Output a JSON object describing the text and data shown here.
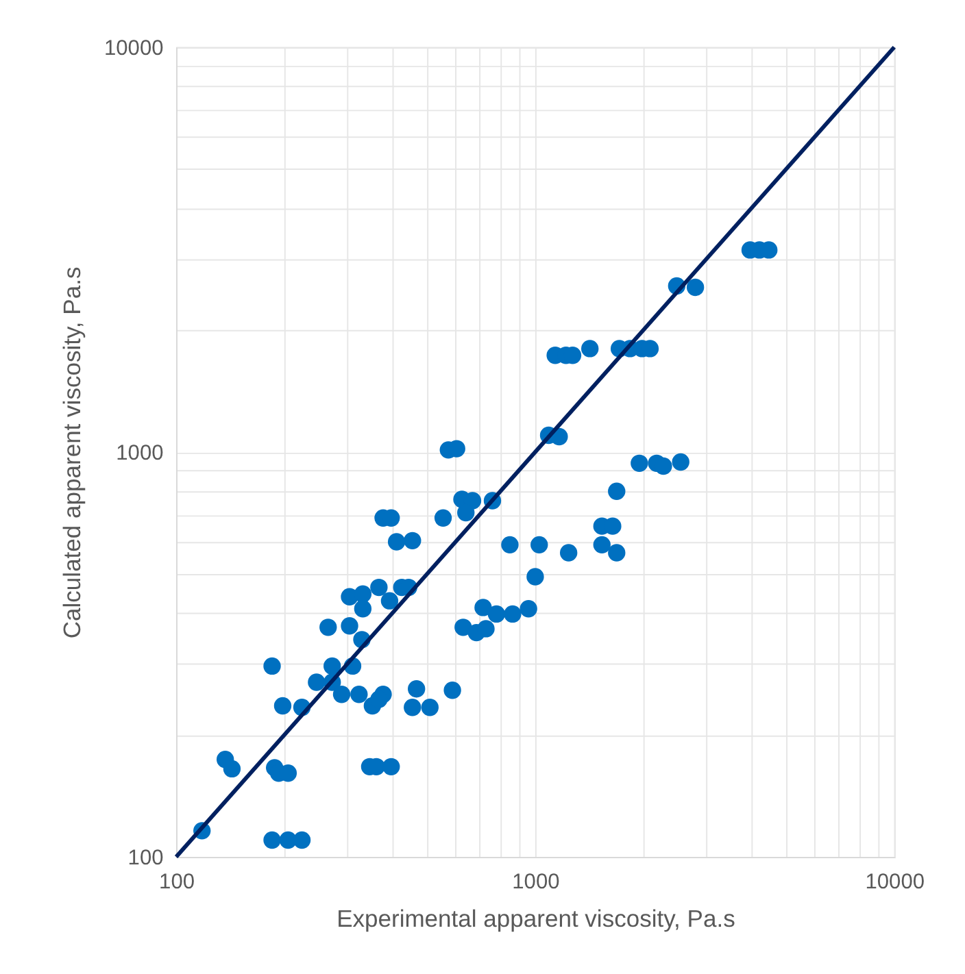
{
  "chart_data": {
    "type": "scatter",
    "xlabel": "Experimental apparent viscosity, Pa.s",
    "ylabel": "Calculated apparent viscosity, Pa.s",
    "log": "xy",
    "grid": true,
    "marker": "circle",
    "xlim": [
      100,
      10000
    ],
    "ylim": [
      100,
      10000
    ],
    "xticks": [
      100,
      {
        "value": 200,
        "label": null
      },
      {
        "value": 300,
        "label": null
      },
      {
        "value": 400,
        "label": null
      },
      {
        "value": 500,
        "label": null
      },
      {
        "value": 600,
        "label": null
      },
      {
        "value": 700,
        "label": null
      },
      {
        "value": 800,
        "label": null
      },
      {
        "value": 900,
        "label": null
      },
      1000,
      {
        "value": 2000,
        "label": null
      },
      {
        "value": 3000,
        "label": null
      },
      {
        "value": 4000,
        "label": null
      },
      {
        "value": 5000,
        "label": null
      },
      {
        "value": 6000,
        "label": null
      },
      {
        "value": 7000,
        "label": null
      },
      {
        "value": 8000,
        "label": null
      },
      {
        "value": 9000,
        "label": null
      },
      10000
    ],
    "yticks": [
      100,
      {
        "value": 200,
        "label": null
      },
      {
        "value": 300,
        "label": null
      },
      {
        "value": 400,
        "label": null
      },
      {
        "value": 500,
        "label": null
      },
      {
        "value": 600,
        "label": null
      },
      {
        "value": 700,
        "label": null
      },
      {
        "value": 800,
        "label": null
      },
      {
        "value": 900,
        "label": null
      },
      1000,
      {
        "value": 2000,
        "label": null
      },
      {
        "value": 3000,
        "label": null
      },
      {
        "value": 4000,
        "label": null
      },
      {
        "value": 5000,
        "label": null
      },
      {
        "value": 6000,
        "label": null
      },
      {
        "value": 7000,
        "label": null
      },
      {
        "value": 8000,
        "label": null
      },
      {
        "value": 9000,
        "label": null
      },
      10000
    ],
    "series": [
      {
        "color": "#0070c0",
        "x": [
          118,
          137,
          143,
          185,
          188,
          193,
          205,
          185,
          205,
          224,
          198,
          224,
          246,
          272,
          272,
          310,
          289,
          323,
          352,
          377,
          367,
          346,
          361,
          397,
          467,
          455,
          509,
          588,
          265,
          304,
          329,
          304,
          331,
          331,
          367,
          393,
          425,
          444,
          554,
          377,
          397,
          411,
          455,
          573,
          604,
          625,
          669,
          641,
          760,
          850,
          1026,
          1239,
          1000,
          630,
          686,
          729,
          716,
          780,
          865,
          958,
          1090,
          1166,
          1137,
          1218,
          1271,
          1420,
          1715,
          1837,
          1984,
          2088,
          1950,
          2179,
          2275,
          2542,
          1686,
          1534,
          1643,
          1534,
          1686,
          2478,
          2793,
          3968,
          4212,
          4473
        ],
        "values": [
          116,
          174,
          165,
          296,
          166,
          161,
          161,
          110,
          110,
          110,
          236,
          234,
          270,
          296,
          270,
          296,
          252,
          252,
          236,
          252,
          245,
          167,
          167,
          167,
          260,
          234,
          234,
          258,
          369,
          372,
          344,
          439,
          446,
          410,
          463,
          429,
          463,
          463,
          687,
          687,
          687,
          600,
          604,
          1012,
          1019,
          764,
          758,
          708,
          758,
          590,
          590,
          564,
          492,
          369,
          358,
          366,
          413,
          398,
          398,
          410,
          1100,
          1091,
          1733,
          1733,
          1733,
          1801,
          1801,
          1801,
          1801,
          1801,
          938,
          938,
          923,
          945,
          800,
          656,
          656,
          590,
          564,
          2572,
          2552,
          3156,
          3156,
          3156
        ]
      },
      {
        "type": "line",
        "marker": "none",
        "color": "#002060",
        "x": [
          100,
          10000
        ],
        "values": [
          100,
          10000
        ]
      }
    ]
  }
}
